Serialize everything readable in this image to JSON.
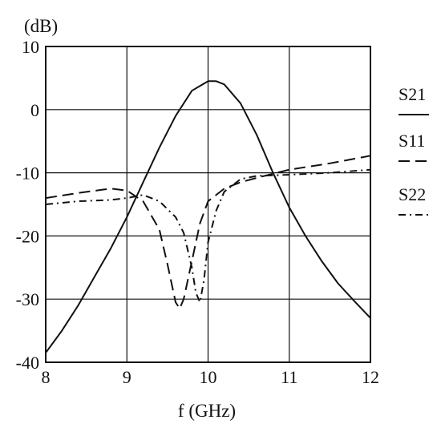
{
  "chart_data": {
    "type": "line",
    "title": "",
    "ylabel": "(dB)",
    "xlabel": "f (GHz)",
    "xlim": [
      8,
      12
    ],
    "ylim": [
      -40,
      10
    ],
    "xticks": [
      "8",
      "9",
      "10",
      "11",
      "12"
    ],
    "yticks": [
      "10",
      "0",
      "-10",
      "-20",
      "-30",
      "-40"
    ],
    "grid": true,
    "legend_position": "right",
    "series": [
      {
        "name": "S21",
        "style": "solid",
        "x": [
          8.0,
          8.2,
          8.4,
          8.6,
          8.8,
          9.0,
          9.2,
          9.4,
          9.6,
          9.8,
          10.0,
          10.1,
          10.2,
          10.4,
          10.6,
          10.8,
          11.0,
          11.2,
          11.4,
          11.6,
          11.8,
          12.0
        ],
        "y": [
          -38.5,
          -35.0,
          -31.0,
          -26.5,
          -22.0,
          -17.0,
          -11.5,
          -6.0,
          -1.0,
          3.0,
          4.5,
          4.5,
          4.0,
          1.0,
          -4.0,
          -10.0,
          -15.5,
          -20.0,
          -24.0,
          -27.5,
          -30.3,
          -33.0
        ]
      },
      {
        "name": "S11",
        "style": "dashed",
        "x": [
          8.0,
          8.4,
          8.8,
          9.0,
          9.2,
          9.4,
          9.5,
          9.6,
          9.65,
          9.7,
          9.8,
          9.9,
          10.0,
          10.2,
          10.4,
          10.6,
          11.0,
          11.5,
          12.0
        ],
        "y": [
          -14.0,
          -13.2,
          -12.5,
          -12.8,
          -14.5,
          -19.0,
          -24.5,
          -30.5,
          -31.5,
          -30.0,
          -24.0,
          -18.0,
          -14.5,
          -12.5,
          -11.5,
          -10.8,
          -9.5,
          -8.5,
          -7.3
        ]
      },
      {
        "name": "S22",
        "style": "dashdot",
        "x": [
          8.0,
          8.4,
          8.8,
          9.0,
          9.2,
          9.4,
          9.6,
          9.7,
          9.8,
          9.85,
          9.9,
          9.95,
          10.0,
          10.1,
          10.2,
          10.4,
          10.6,
          11.0,
          11.5,
          12.0
        ],
        "y": [
          -15.0,
          -14.5,
          -14.3,
          -14.0,
          -13.5,
          -14.5,
          -17.0,
          -19.5,
          -25.0,
          -29.0,
          -30.5,
          -27.0,
          -21.0,
          -16.0,
          -13.0,
          -11.0,
          -10.5,
          -10.3,
          -10.0,
          -9.5
        ]
      }
    ]
  }
}
